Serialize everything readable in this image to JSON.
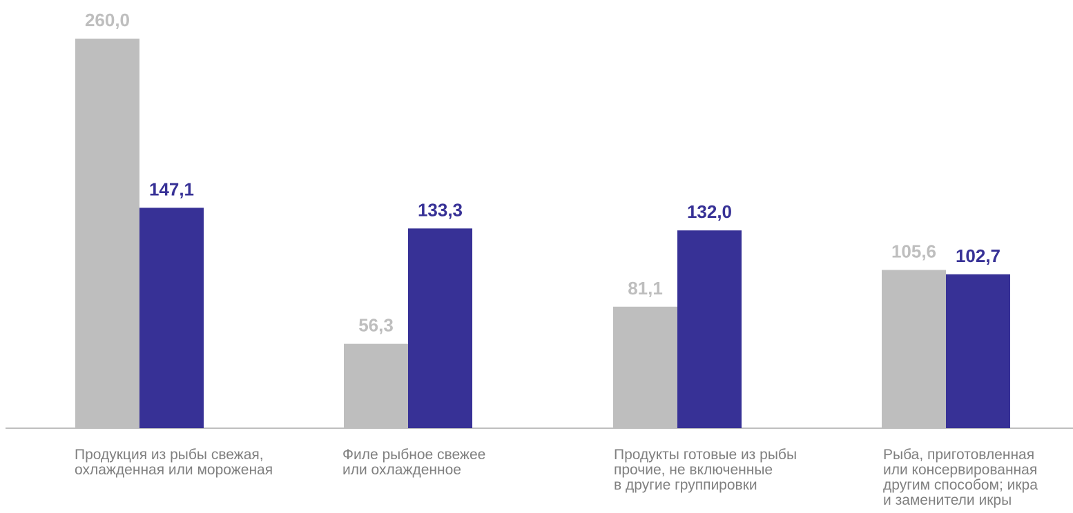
{
  "chart_data": {
    "type": "bar",
    "categories": [
      "Продукция из рыбы свежая,\nохлажденная или мороженая",
      "Филе рыбное свежее\nили охлажденное",
      "Продукты готовые из рыбы\nпрочие, не включенные\nв другие группировки",
      "Рыба, приготовленная\nили консервированная\nдругим способом; икра\nи заменители икры"
    ],
    "series": [
      {
        "values": [
          260.0,
          56.3,
          81.1,
          105.6
        ],
        "labels": [
          "260,0",
          "56,3",
          "81,1",
          "105,6"
        ],
        "color": "#bebebe"
      },
      {
        "values": [
          147.1,
          133.3,
          132.0,
          102.7
        ],
        "labels": [
          "147,1",
          "133,3",
          "132,0",
          "102,7"
        ],
        "color": "#373196"
      }
    ],
    "ylim": [
      0,
      260
    ],
    "grid": false,
    "legend": "none",
    "axis_color": "#bfbfbf",
    "label_color": "#808080"
  }
}
